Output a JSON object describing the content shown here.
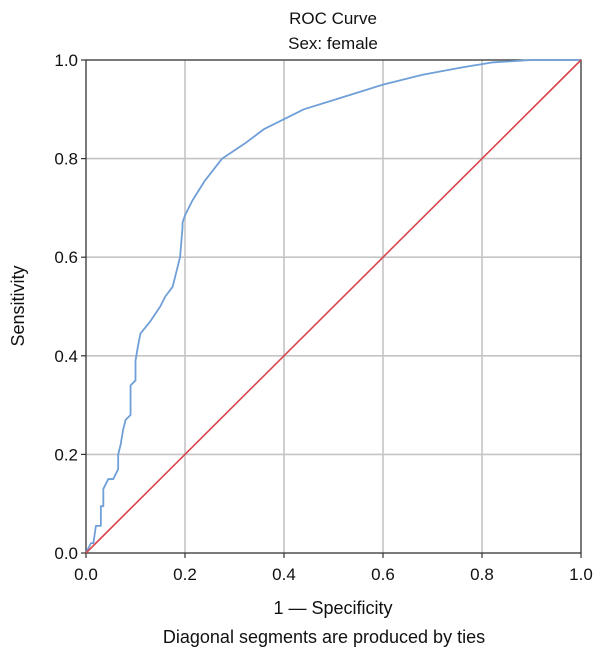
{
  "chart_data": {
    "type": "line",
    "title": "ROC Curve",
    "subtitle": "Sex: female",
    "xlabel": "1 — Specificity",
    "ylabel": "Sensitivity",
    "footnote": "Diagonal segments are produced by ties",
    "xlim": [
      0.0,
      1.0
    ],
    "ylim": [
      0.0,
      1.0
    ],
    "xticks": [
      "0.0",
      "0.2",
      "0.4",
      "0.6",
      "0.8",
      "1.0"
    ],
    "yticks": [
      "0.0",
      "0.2",
      "0.4",
      "0.6",
      "0.8",
      "1.0"
    ],
    "grid": true,
    "series": [
      {
        "color": "#6f9fd8",
        "x": [
          0.0,
          0.01,
          0.015,
          0.02,
          0.02,
          0.03,
          0.03,
          0.035,
          0.035,
          0.045,
          0.055,
          0.06,
          0.065,
          0.065,
          0.07,
          0.075,
          0.08,
          0.09,
          0.09,
          0.1,
          0.1,
          0.105,
          0.11,
          0.13,
          0.15,
          0.16,
          0.175,
          0.185,
          0.19,
          0.195,
          0.195,
          0.2,
          0.215,
          0.24,
          0.275,
          0.32,
          0.36,
          0.44,
          0.52,
          0.6,
          0.68,
          0.76,
          0.82,
          0.9,
          1.0
        ],
        "y": [
          0.0,
          0.02,
          0.02,
          0.055,
          0.055,
          0.055,
          0.095,
          0.095,
          0.13,
          0.15,
          0.15,
          0.16,
          0.17,
          0.2,
          0.22,
          0.25,
          0.27,
          0.28,
          0.34,
          0.35,
          0.39,
          0.42,
          0.445,
          0.47,
          0.5,
          0.52,
          0.54,
          0.58,
          0.6,
          0.66,
          0.67,
          0.685,
          0.715,
          0.755,
          0.8,
          0.83,
          0.86,
          0.9,
          0.925,
          0.95,
          0.97,
          0.985,
          0.995,
          1.0,
          1.0
        ]
      },
      {
        "color": "#d9444c",
        "x": [
          0.0,
          1.0
        ],
        "y": [
          0.0,
          1.0
        ]
      }
    ]
  }
}
